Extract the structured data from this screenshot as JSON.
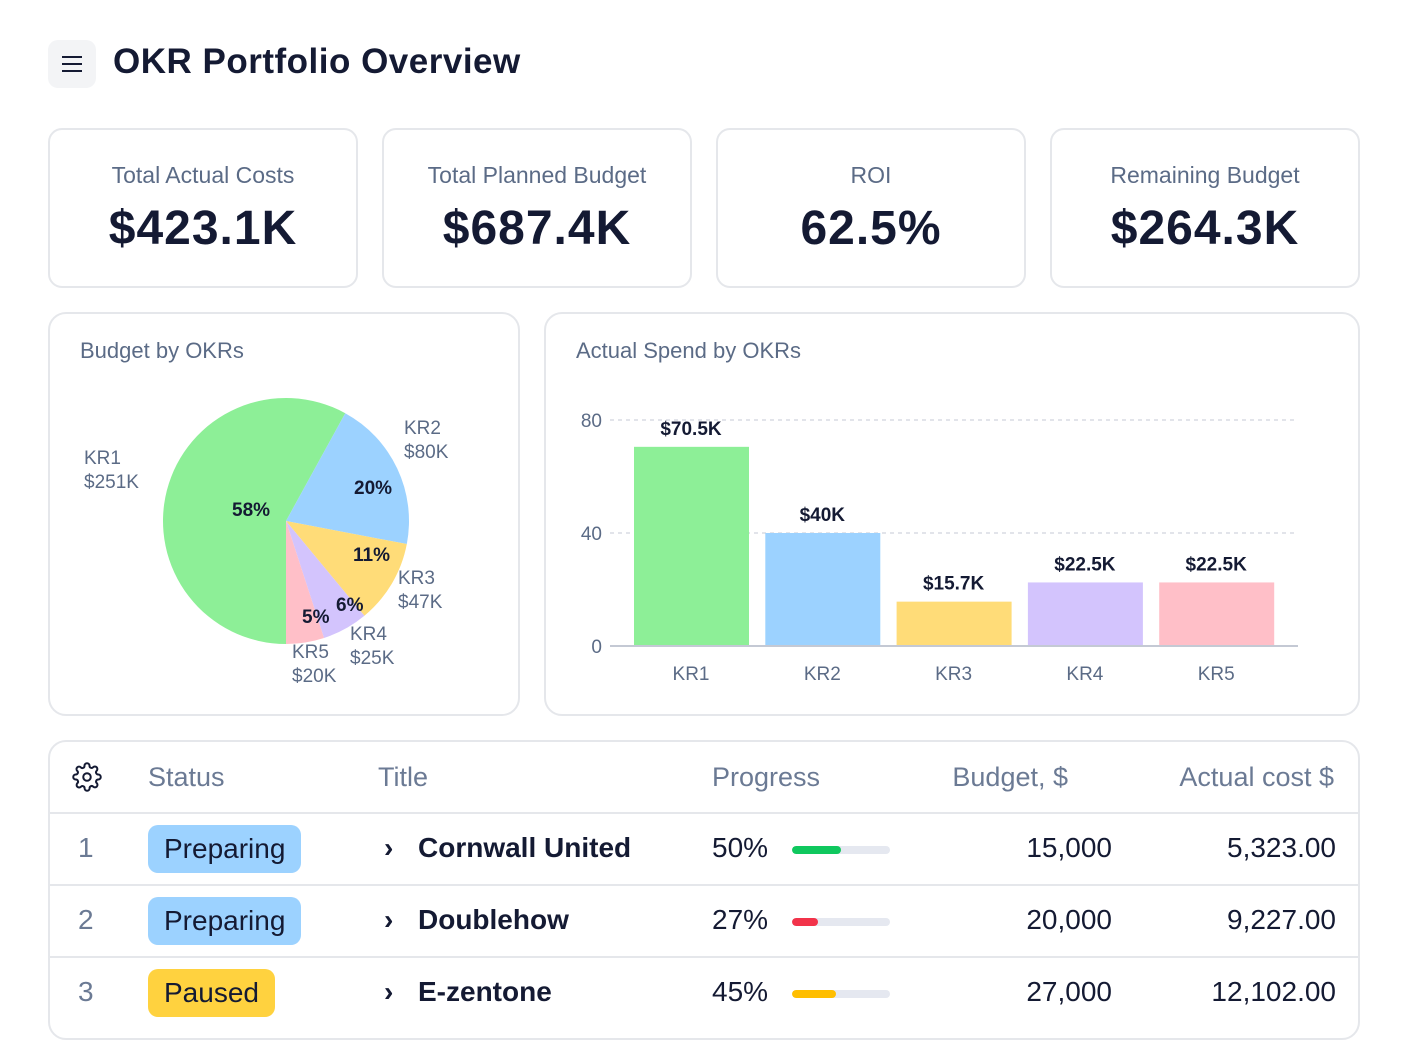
{
  "header": {
    "title": "OKR Portfolio Overview",
    "menu_icon": "hamburger-icon"
  },
  "kpis": [
    {
      "label": "Total Actual Costs",
      "value": "$423.1K"
    },
    {
      "label": "Total Planned Budget",
      "value": "$687.4K"
    },
    {
      "label": "ROI",
      "value": "62.5%"
    },
    {
      "label": "Remaining Budget",
      "value": "$264.3K"
    }
  ],
  "chart_data": [
    {
      "type": "pie",
      "title": "Budget by OKRs",
      "slices": [
        {
          "label": "KR1",
          "amount": "$251K",
          "percent": 58,
          "pct_label": "58%",
          "color": "#8def97"
        },
        {
          "label": "KR2",
          "amount": "$80K",
          "percent": 20,
          "pct_label": "20%",
          "color": "#9cd2ff"
        },
        {
          "label": "KR3",
          "amount": "$47K",
          "percent": 11,
          "pct_label": "11%",
          "color": "#ffdc78"
        },
        {
          "label": "KR4",
          "amount": "$25K",
          "percent": 6,
          "pct_label": "6%",
          "color": "#d3c4fd"
        },
        {
          "label": "KR5",
          "amount": "$20K",
          "percent": 5,
          "pct_label": "5%",
          "color": "#ffbfc8"
        }
      ]
    },
    {
      "type": "bar",
      "title": "Actual Spend by OKRs",
      "categories": [
        "KR1",
        "KR2",
        "KR3",
        "KR4",
        "KR5"
      ],
      "values": [
        70.5,
        40,
        15.7,
        22.5,
        22.5
      ],
      "data_labels": [
        "$70.5K",
        "$40K",
        "$15.7K",
        "$22.5K",
        "$22.5K"
      ],
      "colors": [
        "#8def97",
        "#9cd2ff",
        "#ffdc78",
        "#d3c4fd",
        "#ffbfc8"
      ],
      "ylim": [
        0,
        80
      ],
      "yticks": [
        "0",
        "40",
        "80"
      ],
      "grid": true
    }
  ],
  "table": {
    "settings_icon": "gear-icon",
    "columns": [
      "Status",
      "Title",
      "Progress",
      "Budget, $",
      "Actual cost $"
    ],
    "rows": [
      {
        "num": "1",
        "status": "Preparing",
        "status_color": "#9cd2ff",
        "title": "Cornwall United",
        "progress": "50%",
        "progress_value": 50,
        "progress_color": "#0fc85e",
        "budget": "15,000",
        "actual": "5,323.00"
      },
      {
        "num": "2",
        "status": "Preparing",
        "status_color": "#9cd2ff",
        "title": "Doublehow",
        "progress": "27%",
        "progress_value": 27,
        "progress_color": "#f2334a",
        "budget": "20,000",
        "actual": "9,227.00"
      },
      {
        "num": "3",
        "status": "Paused",
        "status_color": "#ffd23f",
        "title": "E-zentone",
        "progress": "45%",
        "progress_value": 45,
        "progress_color": "#ffbe00",
        "budget": "27,000",
        "actual": "12,102.00"
      }
    ]
  }
}
